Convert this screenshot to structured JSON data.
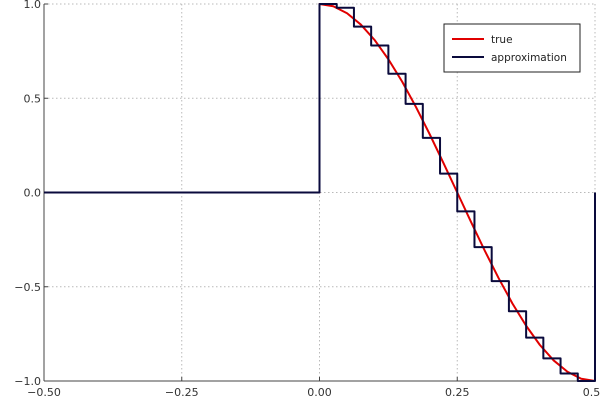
{
  "chart_data": {
    "type": "line",
    "title": "",
    "xlabel": "",
    "ylabel": "",
    "xlim": [
      -0.5,
      0.5
    ],
    "ylim": [
      -1.0,
      1.0
    ],
    "grid": true,
    "x_ticks": [
      -0.5,
      -0.25,
      0.0,
      0.25,
      0.5
    ],
    "x_tick_labels": [
      "−0.50",
      "−0.25",
      "0.00",
      "0.25",
      "0.50"
    ],
    "y_ticks": [
      -1.0,
      -0.5,
      0.0,
      0.5,
      1.0
    ],
    "y_tick_labels": [
      "−1.0",
      "−0.5",
      "0.0",
      "0.5",
      "1.0"
    ],
    "legend_position": "top-right",
    "series": [
      {
        "name": "true",
        "color": "#e00000",
        "style": "smooth",
        "x": [
          -0.5,
          -0.25,
          0.0,
          0.0,
          0.025,
          0.05,
          0.075,
          0.1,
          0.125,
          0.15,
          0.175,
          0.2,
          0.225,
          0.25,
          0.275,
          0.3,
          0.325,
          0.35,
          0.375,
          0.4,
          0.425,
          0.45,
          0.475,
          0.5
        ],
        "y": [
          0.0,
          0.0,
          0.0,
          1.0,
          0.988,
          0.951,
          0.891,
          0.809,
          0.707,
          0.588,
          0.454,
          0.309,
          0.156,
          0.0,
          -0.156,
          -0.309,
          -0.454,
          -0.588,
          -0.707,
          -0.809,
          -0.891,
          -0.951,
          -0.988,
          -1.0
        ]
      },
      {
        "name": "approximation",
        "color": "#0a0a3c",
        "style": "step",
        "x": [
          -0.5,
          0.0,
          0.0,
          0.03125,
          0.0625,
          0.09375,
          0.125,
          0.15625,
          0.1875,
          0.21875,
          0.25,
          0.28125,
          0.3125,
          0.34375,
          0.375,
          0.40625,
          0.4375,
          0.46875,
          0.5,
          0.5
        ],
        "y": [
          0.0,
          0.0,
          1.0,
          0.98,
          0.88,
          0.78,
          0.63,
          0.47,
          0.29,
          0.1,
          -0.1,
          -0.29,
          -0.47,
          -0.63,
          -0.77,
          -0.88,
          -0.96,
          -1.0,
          -1.0,
          0.0
        ]
      }
    ]
  }
}
